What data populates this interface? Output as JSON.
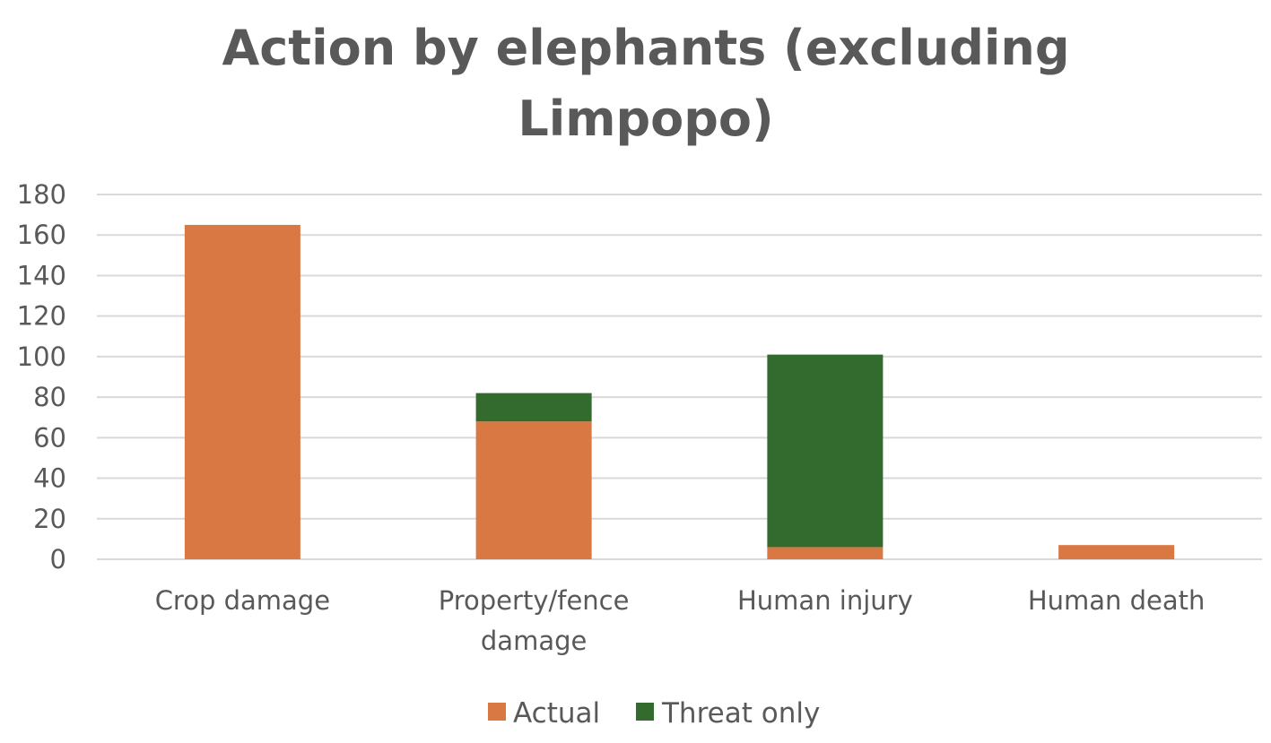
{
  "chart_data": {
    "type": "bar",
    "stacked": true,
    "title": "Action by elephants (excluding Limpopo)",
    "title_lines": [
      "Action by elephants (excluding",
      "Limpopo)"
    ],
    "categories": [
      "Crop damage",
      "Property/fence damage",
      "Human injury",
      "Human death"
    ],
    "category_lines": [
      [
        "Crop damage"
      ],
      [
        "Property/fence",
        "damage"
      ],
      [
        "Human injury"
      ],
      [
        "Human death"
      ]
    ],
    "series": [
      {
        "name": "Actual",
        "color": "#d97842",
        "values": [
          165,
          68,
          6,
          7
        ]
      },
      {
        "name": "Threat only",
        "color": "#336b2f",
        "values": [
          0,
          14,
          95,
          0
        ]
      }
    ],
    "ylim": [
      0,
      180
    ],
    "yticks": [
      "0",
      "20",
      "40",
      "60",
      "80",
      "100",
      "120",
      "140",
      "160",
      "180"
    ],
    "xlabel": "",
    "ylabel": "",
    "grid": true,
    "legend_position": "bottom"
  }
}
